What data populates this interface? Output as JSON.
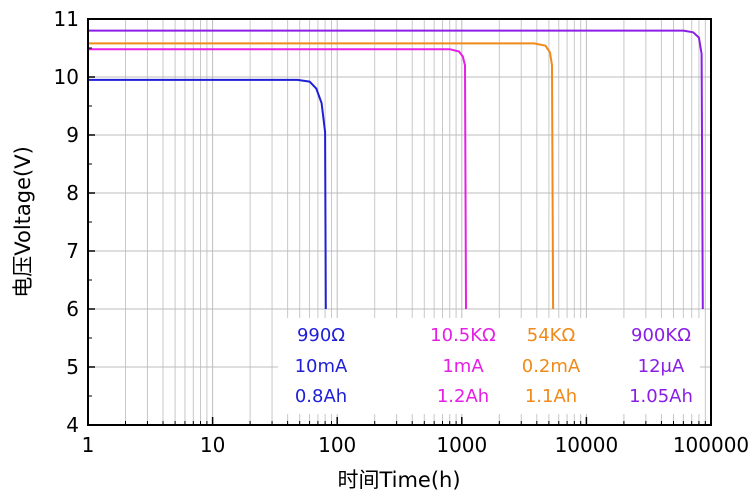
{
  "chart_data": {
    "type": "line",
    "xlabel": "时间Time(h)",
    "ylabel": "电压Voltage(V)",
    "xscale": "log",
    "xlim": [
      1,
      100000
    ],
    "ylim": [
      4,
      11
    ],
    "x_ticks": [
      "1",
      "10",
      "100",
      "1000",
      "10000",
      "100000"
    ],
    "y_ticks": [
      "4",
      "5",
      "6",
      "7",
      "8",
      "9",
      "10",
      "11"
    ],
    "grid": true,
    "series": [
      {
        "color": "#1f1fd6",
        "points": [
          [
            1,
            9.95
          ],
          [
            48,
            9.95
          ],
          [
            60,
            9.92
          ],
          [
            68,
            9.8
          ],
          [
            75,
            9.55
          ],
          [
            80,
            9.05
          ],
          [
            81,
            6.0
          ]
        ]
      },
      {
        "color": "#e61ee6",
        "points": [
          [
            1,
            10.48
          ],
          [
            800,
            10.48
          ],
          [
            950,
            10.44
          ],
          [
            1020,
            10.35
          ],
          [
            1060,
            10.2
          ],
          [
            1080,
            6.0
          ]
        ]
      },
      {
        "color": "#f08a1a",
        "points": [
          [
            1,
            10.58
          ],
          [
            3800,
            10.58
          ],
          [
            4700,
            10.54
          ],
          [
            5100,
            10.42
          ],
          [
            5300,
            10.2
          ],
          [
            5400,
            6.0
          ]
        ]
      },
      {
        "color": "#8a1ee6",
        "points": [
          [
            1,
            10.8
          ],
          [
            60000,
            10.8
          ],
          [
            72000,
            10.77
          ],
          [
            80000,
            10.68
          ],
          [
            84000,
            10.4
          ],
          [
            86000,
            6.0
          ]
        ]
      }
    ],
    "annotations": [
      {
        "lines": [
          "990Ω",
          "10mA",
          "0.8Ah"
        ],
        "color": "#1f1fd6"
      },
      {
        "lines": [
          "10.5KΩ",
          "1mA",
          "1.2Ah"
        ],
        "color": "#e61ee6"
      },
      {
        "lines": [
          "54KΩ",
          "0.2mA",
          "1.1Ah"
        ],
        "color": "#f08a1a"
      },
      {
        "lines": [
          "900KΩ",
          "12μA",
          "1.05Ah"
        ],
        "color": "#8a1ee6"
      }
    ]
  }
}
